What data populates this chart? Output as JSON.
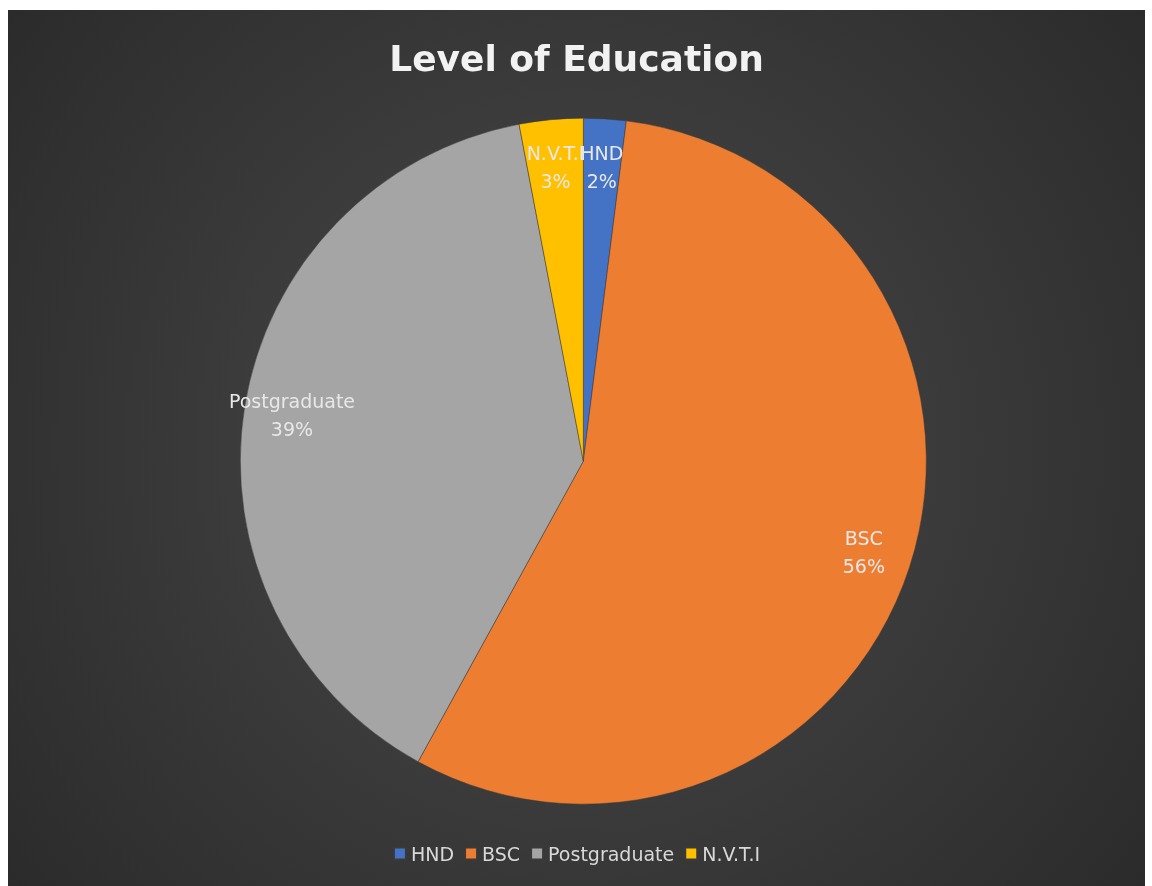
{
  "chart_data": {
    "type": "pie",
    "title": "Level of Education",
    "categories": [
      "HND",
      "BSC",
      "Postgraduate",
      "N.V.T.I"
    ],
    "values": [
      2,
      56,
      39,
      3
    ],
    "colors": [
      "#4472c4",
      "#ed7d31",
      "#a5a5a5",
      "#ffc000"
    ],
    "value_labels": [
      "2%",
      "56%",
      "39%",
      "3%"
    ],
    "legend": "bottom"
  }
}
